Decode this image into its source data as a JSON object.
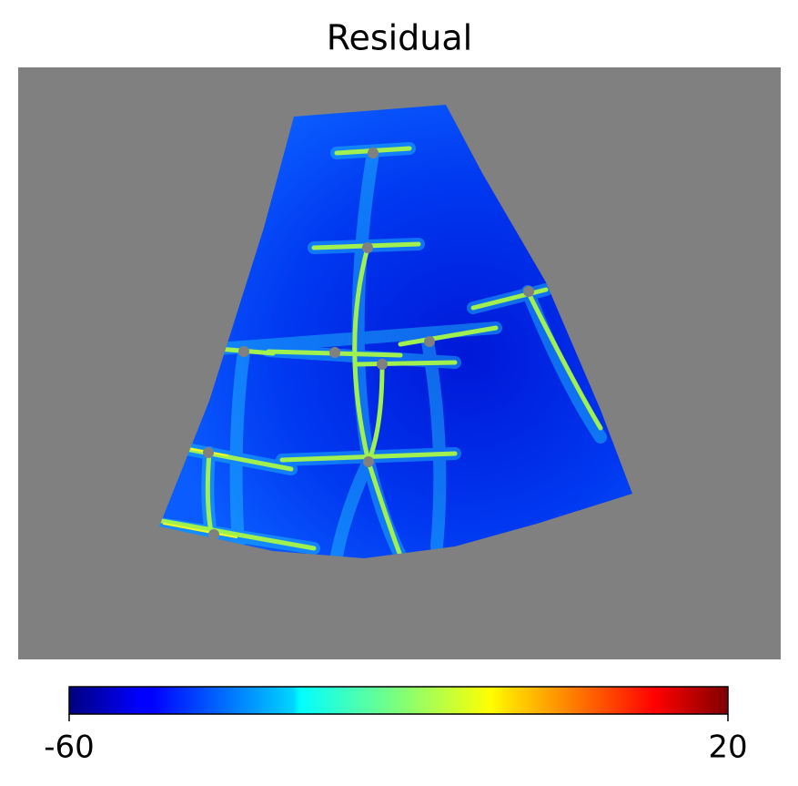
{
  "chart_data": {
    "type": "heatmap",
    "title": "Residual",
    "colormap": "jet",
    "colorbar": {
      "lim": [
        -60,
        20
      ],
      "ticks": [
        -60,
        20
      ]
    }
  }
}
